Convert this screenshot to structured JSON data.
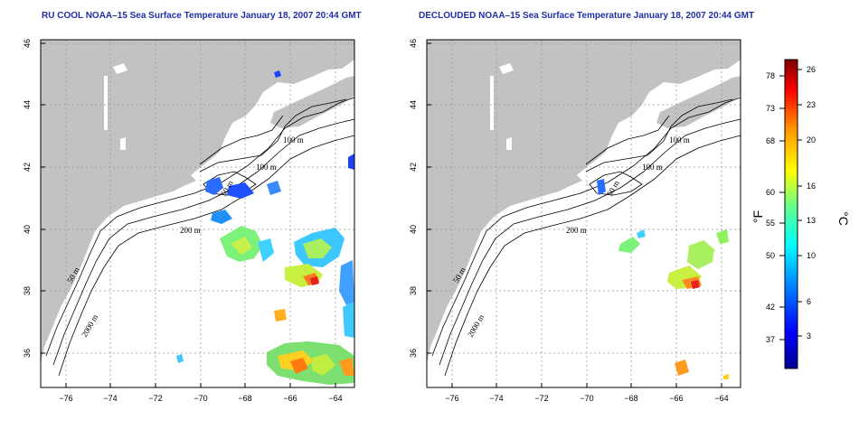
{
  "titles": {
    "left": "RU COOL NOAA–15 Sea Surface Temperature January 18, 2007 20:44 GMT",
    "right": "DECLOUDED NOAA–15 Sea Surface Temperature January 18, 2007 20:44 GMT"
  },
  "axes": {
    "lon_ticks": [
      "−76",
      "−74",
      "−72",
      "−70",
      "−68",
      "−66",
      "−64"
    ],
    "lat_ticks": [
      "46",
      "44",
      "42",
      "40",
      "38",
      "36"
    ]
  },
  "contours": {
    "left": {
      "c1": "100 m",
      "c2": "100 m",
      "c3": "50 m",
      "c4": "200 m",
      "c5": "50 m",
      "c6": "2000 m"
    },
    "right": {
      "c1": "100 m",
      "c2": "100 m",
      "c3": "50 m",
      "c4": "200 m",
      "c5": "50 m",
      "c6": "2000 m"
    }
  },
  "colorbar": {
    "fahrenheit_ticks": [
      "78",
      "73",
      "68",
      "60",
      "55",
      "50",
      "42",
      "37"
    ],
    "celsius_ticks": [
      "26",
      "23",
      "20",
      "16",
      "13",
      "10",
      "6",
      "3"
    ],
    "fahrenheit_unit": "°F",
    "celsius_unit": "°C"
  },
  "colors": {
    "land": "#c2c2c2",
    "title": "#1f2fa8",
    "grid": "#999999"
  }
}
